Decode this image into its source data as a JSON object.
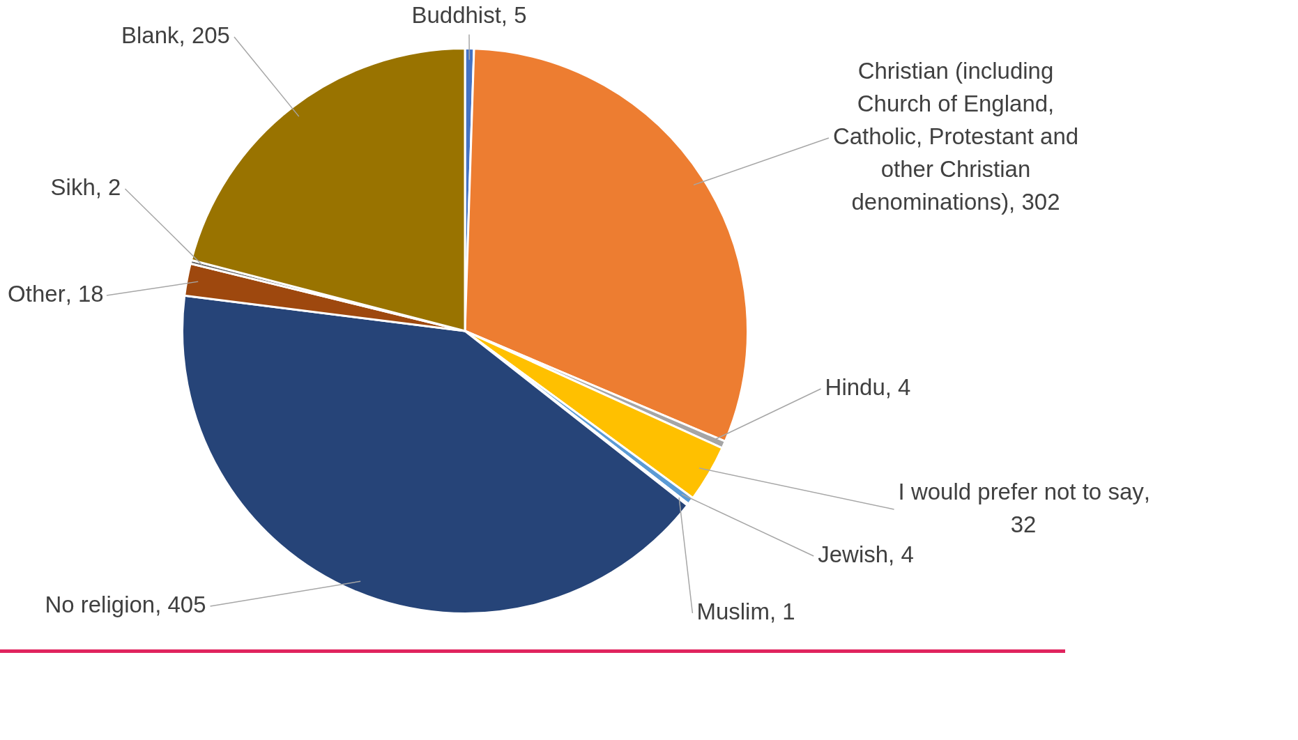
{
  "chart_data": {
    "type": "pie",
    "categories": [
      "Buddhist",
      "Christian (including Church of England, Catholic, Protestant and other Christian denominations)",
      "Hindu",
      "I would prefer not to say",
      "Jewish",
      "Muslim",
      "No religion",
      "Other",
      "Sikh",
      "Blank"
    ],
    "values": [
      5,
      302,
      4,
      32,
      4,
      1,
      405,
      18,
      2,
      205
    ],
    "value_labels": [
      ", 5",
      ", 302",
      ", 4",
      ", 32",
      ", 4",
      ", 1",
      ", 405",
      ", 18",
      ", 2",
      ", 205"
    ],
    "colors": [
      "#4472c4",
      "#ed7d31",
      "#a5a5a5",
      "#ffc000",
      "#5b9bd5",
      "#5b9bd5",
      "#264478",
      "#9e480e",
      "#636363",
      "#997300"
    ],
    "legend": false
  }
}
